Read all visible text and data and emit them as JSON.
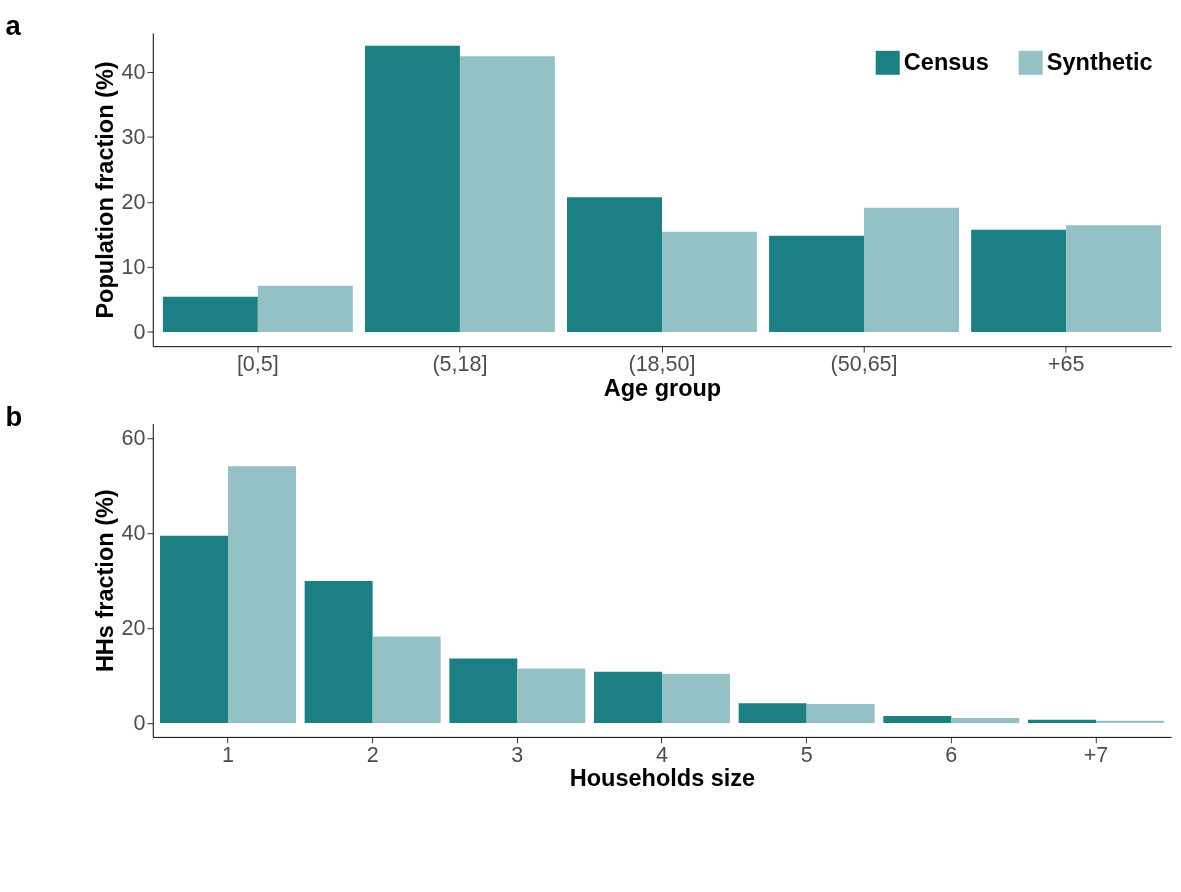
{
  "chart_data": [
    {
      "type": "bar",
      "title": "a",
      "xlabel": "Age group",
      "ylabel": "Population fraction (%)",
      "categories": [
        "[0,5]",
        "(5,18]",
        "(18,50]",
        "(50,65]",
        "+65"
      ],
      "series": [
        {
          "name": "Census",
          "color": "#1b7f84",
          "values": [
            5.4,
            44.0,
            20.7,
            14.8,
            15.7
          ]
        },
        {
          "name": "Synthetic",
          "color": "#93c1c5",
          "values": [
            7.1,
            42.4,
            15.4,
            19.1,
            16.4
          ]
        }
      ],
      "ylim": [
        -2.2,
        46
      ],
      "yticks": [
        0,
        10,
        20,
        30,
        40
      ],
      "grid": false,
      "legend": "top right"
    },
    {
      "type": "bar",
      "title": "b",
      "xlabel": "Households size",
      "ylabel": "HHs fraction (%)",
      "categories": [
        "1",
        "2",
        "3",
        "4",
        "5",
        "6",
        "+7"
      ],
      "series": [
        {
          "color": "#1b7f84",
          "values": [
            39.4,
            29.9,
            13.6,
            10.8,
            4.2,
            1.5,
            0.7
          ]
        },
        {
          "color": "#93c1c5",
          "values": [
            54.0,
            18.2,
            11.5,
            10.4,
            4.0,
            1.1,
            0.5
          ]
        }
      ],
      "ylim": [
        -2.9,
        63
      ],
      "yticks": [
        0,
        20,
        40,
        60
      ],
      "grid": false,
      "legend": false
    }
  ]
}
